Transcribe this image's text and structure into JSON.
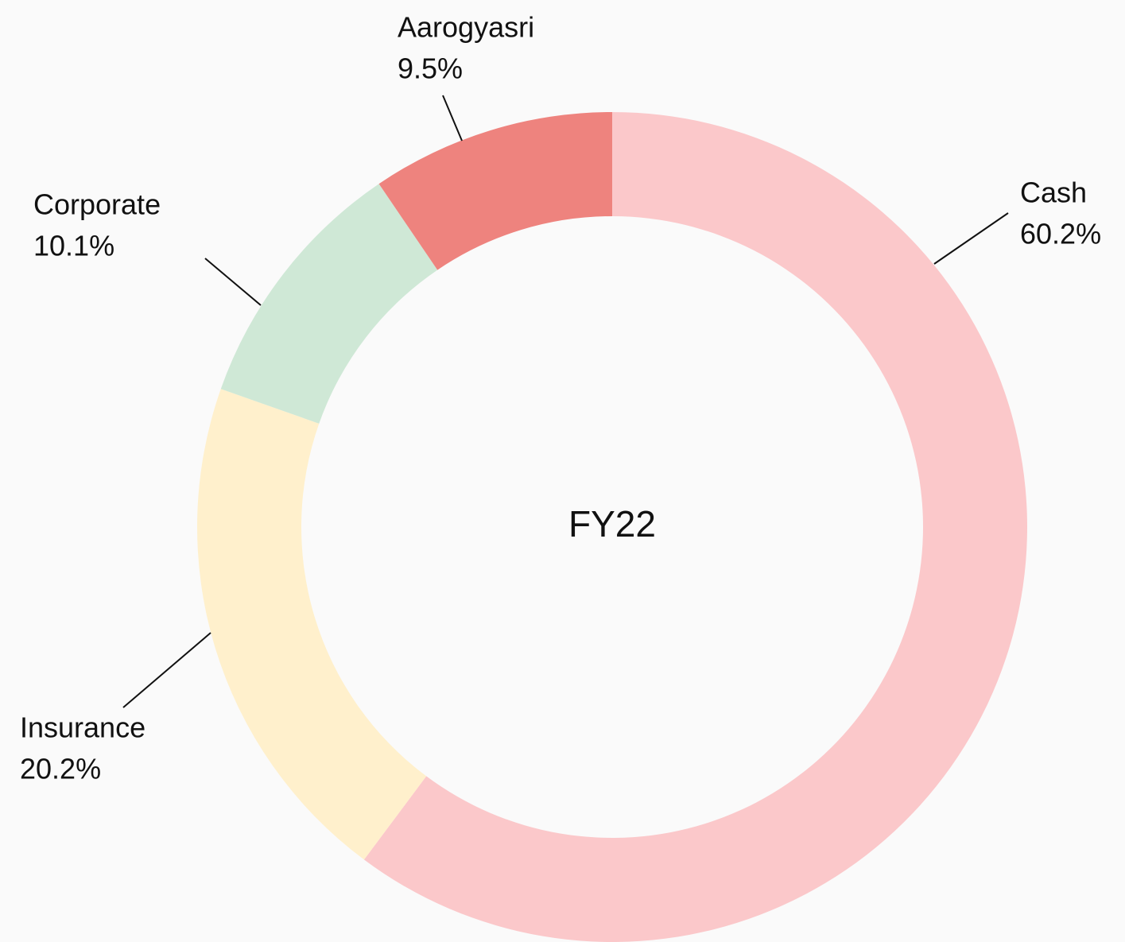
{
  "chart_data": {
    "type": "pie",
    "donut": true,
    "center_label": "FY22",
    "categories": [
      "Cash",
      "Insurance",
      "Corporate",
      "Aarogyasri"
    ],
    "values": [
      60.2,
      20.2,
      10.1,
      9.5
    ],
    "value_labels": [
      "60.2%",
      "20.2%",
      "10.1%",
      "9.5%"
    ],
    "colors": [
      "#fbc8ca",
      "#fff0cc",
      "#cfe8d6",
      "#ee837e"
    ]
  }
}
